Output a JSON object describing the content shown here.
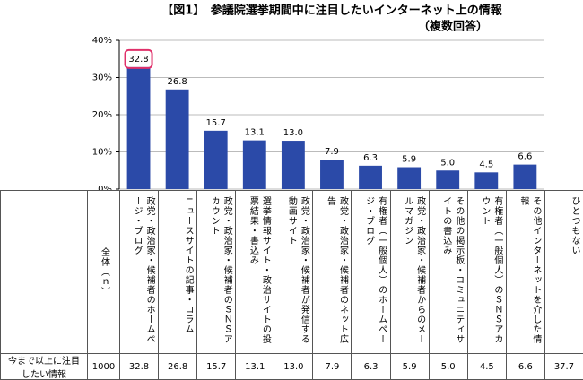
{
  "chart_data": {
    "type": "bar",
    "title": "【図1】　参議院選挙期間中に注目したいインターネット上の情報",
    "subtitle": "（複数回答）",
    "categories": [
      "政党・政治家・候補者のホームページ・ブログ",
      "ニュースサイトの記事・コラム",
      "政党・政治家・候補者のＳＮＳアカウント",
      "選挙情報サイト・政治サイトの投票結果・書込み",
      "政党・政治家・候補者が発信する動画サイト",
      "政党・政治家・候補者のネット広告",
      "有権者（一般個人）のホームページ・ブログ",
      "政党・政治家・候補者からのメールマガジン",
      "その他の掲示板・コミュニティサイトの書込み",
      "有権者（一般個人）のＳＮＳアカウント",
      "その他インターネットを介した情報"
    ],
    "values": [
      32.8,
      26.8,
      15.7,
      13.1,
      13.0,
      7.9,
      6.3,
      5.9,
      5.0,
      4.5,
      6.6
    ],
    "value_labels": [
      "32.8",
      "26.8",
      "15.7",
      "13.1",
      "13.0",
      "7.9",
      "6.3",
      "5.9",
      "5.0",
      "4.5",
      "6.6"
    ],
    "color": "#2b4aa8",
    "ylim": [
      0,
      40
    ],
    "yticks": [
      {
        "value": 0,
        "label": "0%"
      },
      {
        "value": 10,
        "label": "10%"
      },
      {
        "value": 20,
        "label": "20%"
      },
      {
        "value": 30,
        "label": "30%"
      },
      {
        "value": 40,
        "label": "40%"
      }
    ],
    "grid": true
  },
  "table": {
    "row_label": "今まで以上に注目したい情報",
    "total_label": "全体（ｎ）",
    "total_n": 1000,
    "none_label": "ひとつもない",
    "none_value": 37.7
  }
}
